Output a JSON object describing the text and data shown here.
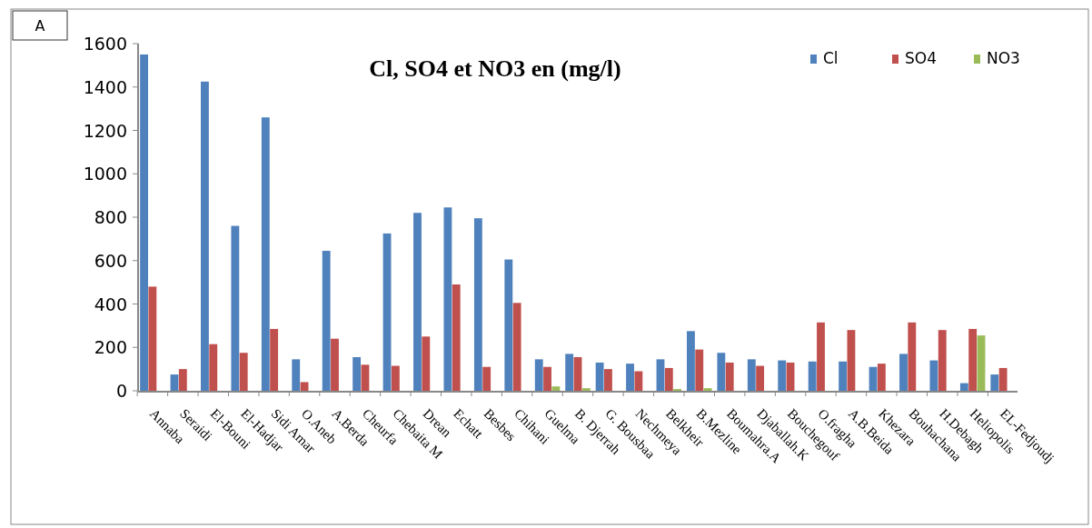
{
  "chart_data": {
    "type": "bar",
    "title": "Cl, SO4 et NO3 en (mg/l)",
    "annotations": [
      "A"
    ],
    "categories": [
      "Annaba",
      "Seraidi",
      "El-Bouni",
      "El-Hadjar",
      "Sidi Amar",
      "O.Aneb",
      "A.Berda",
      "Cheurfa",
      "Chebaita M",
      "Drean",
      "Echatt",
      "Besbes",
      "Chihani",
      "Guelma",
      "B. Djerrah",
      "G. Bousbaa",
      "Nechmeya",
      "Belkheir",
      "B.Mezline",
      "Boumahra.A",
      "Djaballah.K",
      "Bouchegouf",
      "O.fragha",
      "A.B.Beida",
      "Khezara",
      "Bouhachana",
      "H.Debagh",
      "Heliopolis",
      "EL-Fedjoudj"
    ],
    "series": [
      {
        "name": "Cl",
        "color": "#4f81bd",
        "values": [
          1550,
          75,
          1425,
          760,
          1260,
          145,
          645,
          155,
          725,
          820,
          845,
          795,
          605,
          145,
          170,
          130,
          125,
          145,
          275,
          175,
          145,
          140,
          135,
          135,
          110,
          170,
          140,
          35,
          75
        ]
      },
      {
        "name": "SO4",
        "color": "#c0504d",
        "values": [
          480,
          100,
          215,
          175,
          285,
          40,
          240,
          120,
          115,
          250,
          490,
          110,
          405,
          110,
          155,
          100,
          90,
          105,
          190,
          130,
          115,
          130,
          315,
          280,
          125,
          315,
          280,
          285,
          105
        ]
      },
      {
        "name": "NO3",
        "color": "#9bbb59",
        "values": [
          null,
          null,
          null,
          null,
          null,
          null,
          null,
          null,
          null,
          null,
          null,
          null,
          null,
          20,
          12,
          null,
          null,
          8,
          12,
          null,
          null,
          null,
          null,
          null,
          null,
          null,
          null,
          255,
          null
        ]
      }
    ],
    "ylim": [
      0,
      1600
    ],
    "yticks": [
      0,
      200,
      400,
      600,
      800,
      1000,
      1200,
      1400,
      1600
    ],
    "grid": false,
    "legend": "top right"
  }
}
